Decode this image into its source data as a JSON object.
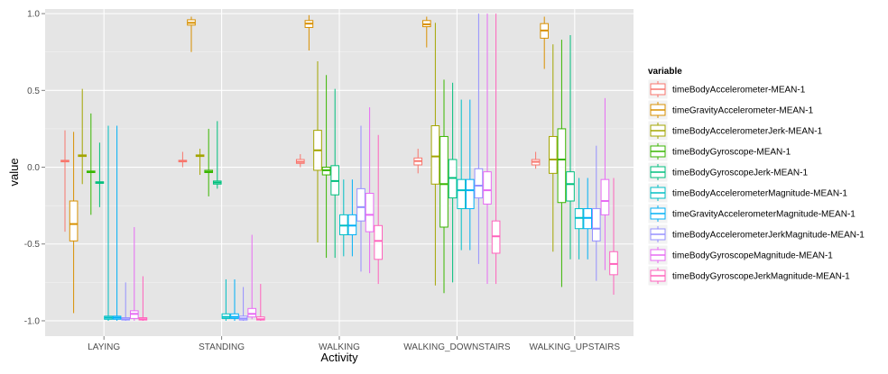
{
  "chart_data": {
    "type": "boxplot",
    "title": "",
    "xlabel": "Activity",
    "ylabel": "value",
    "ylim": [
      -1.1,
      1.03
    ],
    "yticks": [
      "1.0",
      "0.5",
      "0.0",
      "-0.5",
      "-1.0"
    ],
    "ytick_values": [
      1.0,
      0.5,
      0.0,
      -0.5,
      -1.0
    ],
    "grid": true,
    "legend_title": "variable",
    "legend_position": "right",
    "categories": [
      "LAYING",
      "STANDING",
      "WALKING",
      "WALKING_DOWNSTAIRS",
      "WALKING_UPSTAIRS"
    ],
    "series": [
      {
        "name": "timeBodyAccelerometer-MEAN-1",
        "color": "#F8766D",
        "boxes": [
          [
            -0.42,
            0.035,
            0.04,
            0.045,
            0.24
          ],
          [
            0.0,
            0.035,
            0.04,
            0.045,
            0.1
          ],
          [
            0.0,
            0.025,
            0.035,
            0.05,
            0.085
          ],
          [
            -0.04,
            0.015,
            0.04,
            0.06,
            0.12
          ],
          [
            -0.01,
            0.015,
            0.035,
            0.05,
            0.1
          ]
        ]
      },
      {
        "name": "timeGravityAccelerometer-MEAN-1",
        "color": "#D89000",
        "boxes": [
          [
            -0.95,
            -0.48,
            -0.37,
            -0.22,
            0.23
          ],
          [
            0.75,
            0.925,
            0.94,
            0.96,
            0.98
          ],
          [
            0.76,
            0.91,
            0.935,
            0.955,
            0.99
          ],
          [
            0.78,
            0.915,
            0.93,
            0.955,
            0.98
          ],
          [
            0.64,
            0.84,
            0.89,
            0.935,
            0.98
          ]
        ]
      },
      {
        "name": "timeBodyAccelerometerJerk-MEAN-1",
        "color": "#A3A500",
        "boxes": [
          [
            -0.11,
            0.07,
            0.075,
            0.08,
            0.51
          ],
          [
            -0.05,
            0.07,
            0.075,
            0.08,
            0.12
          ],
          [
            -0.49,
            -0.02,
            0.11,
            0.24,
            0.69
          ],
          [
            -0.77,
            -0.11,
            0.07,
            0.27,
            0.94
          ],
          [
            -0.55,
            -0.04,
            0.05,
            0.2,
            0.8
          ]
        ]
      },
      {
        "name": "timeBodyGyroscope-MEAN-1",
        "color": "#39B600",
        "boxes": [
          [
            -0.31,
            -0.035,
            -0.03,
            -0.025,
            0.35
          ],
          [
            -0.19,
            -0.035,
            -0.03,
            -0.02,
            0.25
          ],
          [
            -0.59,
            -0.05,
            -0.02,
            0.0,
            0.6
          ],
          [
            -0.82,
            -0.39,
            -0.11,
            0.2,
            0.57
          ],
          [
            -0.78,
            -0.23,
            0.05,
            0.25,
            0.83
          ]
        ]
      },
      {
        "name": "timeBodyGyroscopeJerk-MEAN-1",
        "color": "#00BF7D",
        "boxes": [
          [
            -0.26,
            -0.105,
            -0.1,
            -0.095,
            0.16
          ],
          [
            -0.14,
            -0.11,
            -0.1,
            -0.09,
            0.3
          ],
          [
            -0.59,
            -0.18,
            -0.09,
            0.01,
            0.51
          ],
          [
            -0.75,
            -0.2,
            -0.07,
            0.05,
            0.55
          ],
          [
            -0.6,
            -0.22,
            -0.11,
            -0.03,
            0.86
          ]
        ]
      },
      {
        "name": "timeBodyAccelerometerMagnitude-MEAN-1",
        "color": "#00BFC4",
        "boxes": [
          [
            -1.0,
            -0.99,
            -0.98,
            -0.97,
            0.27
          ],
          [
            -1.0,
            -0.985,
            -0.975,
            -0.955,
            -0.73
          ],
          [
            -0.58,
            -0.44,
            -0.38,
            -0.31,
            -0.08
          ],
          [
            -0.54,
            -0.27,
            -0.15,
            -0.08,
            0.44
          ],
          [
            -0.6,
            -0.4,
            -0.33,
            -0.27,
            -0.07
          ]
        ]
      },
      {
        "name": "timeGravityAccelerometerMagnitude-MEAN-1",
        "color": "#00B0F6",
        "boxes": [
          [
            -1.0,
            -0.99,
            -0.98,
            -0.97,
            0.27
          ],
          [
            -1.0,
            -0.985,
            -0.975,
            -0.955,
            -0.73
          ],
          [
            -0.58,
            -0.44,
            -0.38,
            -0.31,
            -0.08
          ],
          [
            -0.54,
            -0.27,
            -0.15,
            -0.08,
            0.44
          ],
          [
            -0.6,
            -0.4,
            -0.33,
            -0.27,
            -0.07
          ]
        ]
      },
      {
        "name": "timeBodyAccelerometerJerkMagnitude-MEAN-1",
        "color": "#9590FF",
        "boxes": [
          [
            -1.0,
            -0.995,
            -0.99,
            -0.98,
            -0.75
          ],
          [
            -1.0,
            -0.995,
            -0.985,
            -0.97,
            -0.78
          ],
          [
            -0.68,
            -0.35,
            -0.26,
            -0.14,
            0.27
          ],
          [
            -0.63,
            -0.2,
            -0.12,
            -0.01,
            1.0
          ],
          [
            -0.74,
            -0.48,
            -0.4,
            -0.27,
            0.14
          ]
        ]
      },
      {
        "name": "timeBodyGyroscopeMagnitude-MEAN-1",
        "color": "#E76BF3",
        "boxes": [
          [
            -1.0,
            -0.985,
            -0.955,
            -0.935,
            -0.39
          ],
          [
            -0.99,
            -0.975,
            -0.955,
            -0.92,
            -0.44
          ],
          [
            -0.69,
            -0.42,
            -0.31,
            -0.17,
            0.39
          ],
          [
            -0.76,
            -0.24,
            -0.15,
            -0.03,
            1.0
          ],
          [
            -0.67,
            -0.31,
            -0.22,
            -0.08,
            0.45
          ]
        ]
      },
      {
        "name": "timeBodyGyroscopeJerkMagnitude-MEAN-1",
        "color": "#FF62BC",
        "boxes": [
          [
            -1.0,
            -0.995,
            -0.99,
            -0.98,
            -0.71
          ],
          [
            -1.0,
            -0.995,
            -0.99,
            -0.975,
            -0.76
          ],
          [
            -0.76,
            -0.6,
            -0.48,
            -0.38,
            0.21
          ],
          [
            -0.76,
            -0.56,
            -0.45,
            -0.35,
            1.0
          ],
          [
            -0.83,
            -0.7,
            -0.63,
            -0.55,
            -0.07
          ]
        ]
      }
    ]
  }
}
